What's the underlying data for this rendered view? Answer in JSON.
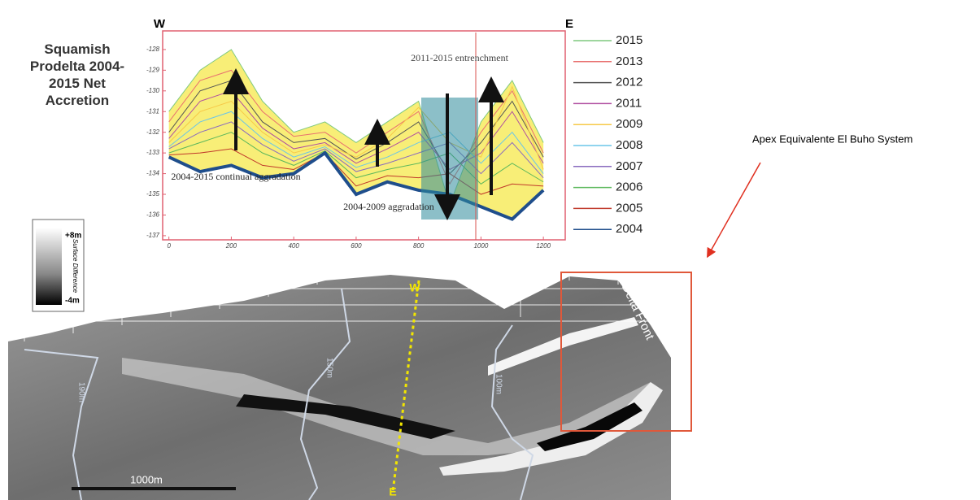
{
  "chart_data": {
    "type": "line",
    "title": "Squamish Prodelta 2004-2015 Net Accretion",
    "west_label": "W",
    "east_label": "E",
    "x": [
      0,
      100,
      200,
      300,
      400,
      500,
      600,
      700,
      800,
      900,
      1000,
      1100,
      1200
    ],
    "xlim": [
      -20,
      1270
    ],
    "xticks": [
      0,
      200,
      400,
      600,
      800,
      1000,
      1200
    ],
    "ylim": [
      -137.2,
      -127.1
    ],
    "yticks": [
      -128,
      -129,
      -130,
      -131,
      -132,
      -133,
      -134,
      -135,
      -136,
      -137
    ],
    "series": [
      {
        "name": "2015",
        "color": "#7fc97f",
        "values": [
          -131,
          -129,
          -128,
          -130.5,
          -132,
          -131.5,
          -132.5,
          -131.5,
          -130.5,
          -135.5,
          -131.5,
          -129.5,
          -132.5
        ]
      },
      {
        "name": "2013",
        "color": "#e8706f",
        "values": [
          -131.5,
          -129.5,
          -129,
          -131,
          -132.2,
          -132,
          -133,
          -132,
          -131,
          -134.5,
          -132,
          -130,
          -133
        ]
      },
      {
        "name": "2012",
        "color": "#555555",
        "values": [
          -132,
          -130,
          -129.5,
          -131.5,
          -132.5,
          -132.3,
          -133.3,
          -132.5,
          -131.5,
          -134,
          -132.5,
          -130.5,
          -133.2
        ]
      },
      {
        "name": "2011",
        "color": "#b04fa0",
        "values": [
          -132.3,
          -130.5,
          -130,
          -131.8,
          -132.8,
          -132.5,
          -133.5,
          -132.8,
          -132,
          -133.8,
          -133,
          -131,
          -133.5
        ]
      },
      {
        "name": "2009",
        "color": "#f7c948",
        "values": [
          -132.5,
          -131,
          -130.5,
          -132,
          -133,
          -132.6,
          -133.2,
          -132.3,
          -130.8,
          -132.5,
          -133.2,
          -129.8,
          -133.8
        ]
      },
      {
        "name": "2008",
        "color": "#6cc5e8",
        "values": [
          -132.7,
          -131.5,
          -131,
          -132.3,
          -133.2,
          -132.7,
          -133.7,
          -133.2,
          -132.5,
          -132,
          -133.5,
          -132,
          -134
        ]
      },
      {
        "name": "2007",
        "color": "#8a6bbf",
        "values": [
          -132.8,
          -132,
          -131.5,
          -132.6,
          -133.4,
          -132.8,
          -133.9,
          -133.5,
          -133,
          -132.5,
          -134,
          -132.5,
          -134.2
        ]
      },
      {
        "name": "2006",
        "color": "#5cb85c",
        "values": [
          -133,
          -132.5,
          -132,
          -133,
          -133.6,
          -132.9,
          -134.2,
          -133.8,
          -133.5,
          -133,
          -134.5,
          -133.5,
          -134.4
        ]
      },
      {
        "name": "2005",
        "color": "#c0392b",
        "values": [
          -133.1,
          -133,
          -132.8,
          -133.6,
          -133.8,
          -133,
          -134.6,
          -134.1,
          -134.2,
          -134,
          -135,
          -134.5,
          -134.6
        ]
      },
      {
        "name": "2004",
        "color": "#1f4e8c",
        "values": [
          -133.2,
          -133.9,
          -133.6,
          -134.2,
          -134,
          -133,
          -135,
          -134.4,
          -134.8,
          -135,
          -135.6,
          -136.2,
          -134.8
        ]
      }
    ],
    "annotations": [
      "2011-2015 entrenchment",
      "2004-2015 continual aggradation",
      "2004-2009 aggradation"
    ]
  },
  "map": {
    "colorbar_max": "+8m",
    "colorbar_min": "-4m",
    "colorbar_label": "Surface Difference",
    "section_start": "W",
    "section_end": "E",
    "zone_label": "Delta Front",
    "contours": [
      "190m",
      "150m",
      "100m"
    ],
    "scale_bar": "1000m"
  },
  "callout": "Apex Equivalente El Buho System"
}
